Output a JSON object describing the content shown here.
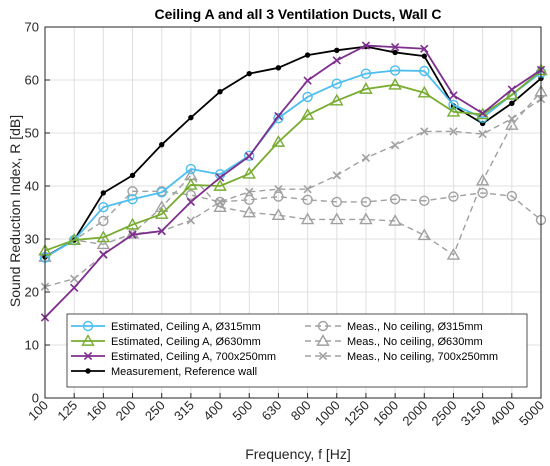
{
  "chart_data": {
    "type": "line",
    "title": "Ceiling A and all 3 Ventilation Ducts, Wall C",
    "xlabel": "Frequency, f [Hz]",
    "ylabel": "Sound Reduction Index, R [dB]",
    "ylim": [
      0,
      70
    ],
    "yticks": [
      "0",
      "10",
      "20",
      "30",
      "40",
      "50",
      "60",
      "70"
    ],
    "grid": true,
    "legend_position": "bottom-center",
    "categories": [
      "100",
      "125",
      "160",
      "200",
      "250",
      "315",
      "400",
      "500",
      "630",
      "800",
      "1000",
      "1250",
      "1600",
      "2000",
      "2500",
      "3150",
      "4000",
      "5000"
    ],
    "series": [
      {
        "name": "Estimated, Ceiling A, Ø315mm",
        "color": "#4DBEEE",
        "marker": "circle",
        "dash": "solid",
        "values": [
          26.5,
          29.8,
          36.0,
          37.5,
          38.8,
          43.2,
          42.2,
          45.7,
          52.8,
          56.8,
          59.3,
          61.2,
          61.8,
          61.7,
          55.3,
          52.9,
          57.2,
          61.4
        ]
      },
      {
        "name": "Estimated, Ceiling A, Ø630mm",
        "color": "#77AC30",
        "marker": "triangle",
        "dash": "solid",
        "values": [
          27.8,
          29.8,
          30.3,
          32.7,
          34.7,
          40.2,
          40.0,
          42.3,
          48.3,
          53.4,
          56.1,
          58.3,
          59.1,
          57.6,
          54.0,
          53.5,
          57.2,
          61.8
        ]
      },
      {
        "name": "Estimated, Ceiling A, 700x250mm",
        "color": "#7E2F8E",
        "marker": "x",
        "dash": "solid",
        "values": [
          15.2,
          20.8,
          27.1,
          30.8,
          31.5,
          37.0,
          41.6,
          45.6,
          53.2,
          59.9,
          63.7,
          66.5,
          66.2,
          65.9,
          57.1,
          53.7,
          58.2,
          61.9
        ]
      },
      {
        "name": "Measurement, Reference wall",
        "color": "#000000",
        "marker": "dot",
        "dash": "solid",
        "values": [
          26.6,
          29.8,
          38.7,
          42.0,
          47.8,
          52.9,
          57.8,
          61.2,
          62.3,
          64.7,
          65.6,
          66.3,
          65.2,
          64.5,
          55.1,
          51.8,
          55.6,
          60.3
        ]
      },
      {
        "name": "Meas., No ceiling, Ø315mm",
        "color": "#A0A0A0",
        "marker": "circle",
        "dash": "dashed",
        "values": [
          26.6,
          29.8,
          33.4,
          39.0,
          39.0,
          38.3,
          37.0,
          37.4,
          38.0,
          37.4,
          37.0,
          37.0,
          37.5,
          37.2,
          38.0,
          38.7,
          38.1,
          33.6
        ]
      },
      {
        "name": "Meas., No ceiling, Ø630mm",
        "color": "#A0A0A0",
        "marker": "triangle",
        "dash": "dashed",
        "values": [
          26.6,
          29.8,
          29.0,
          31.0,
          36.0,
          42.0,
          36.0,
          35.0,
          34.5,
          33.7,
          33.7,
          33.7,
          33.4,
          30.7,
          27.0,
          41.0,
          51.5,
          57.8
        ]
      },
      {
        "name": "Meas., No ceiling, 700x250mm",
        "color": "#A0A0A0",
        "marker": "x",
        "dash": "dashed",
        "values": [
          21.0,
          22.5,
          27.0,
          31.0,
          31.5,
          33.5,
          37.0,
          38.9,
          39.4,
          39.4,
          42.0,
          45.3,
          47.7,
          50.3,
          50.3,
          49.8,
          52.7,
          56.4
        ]
      }
    ]
  }
}
